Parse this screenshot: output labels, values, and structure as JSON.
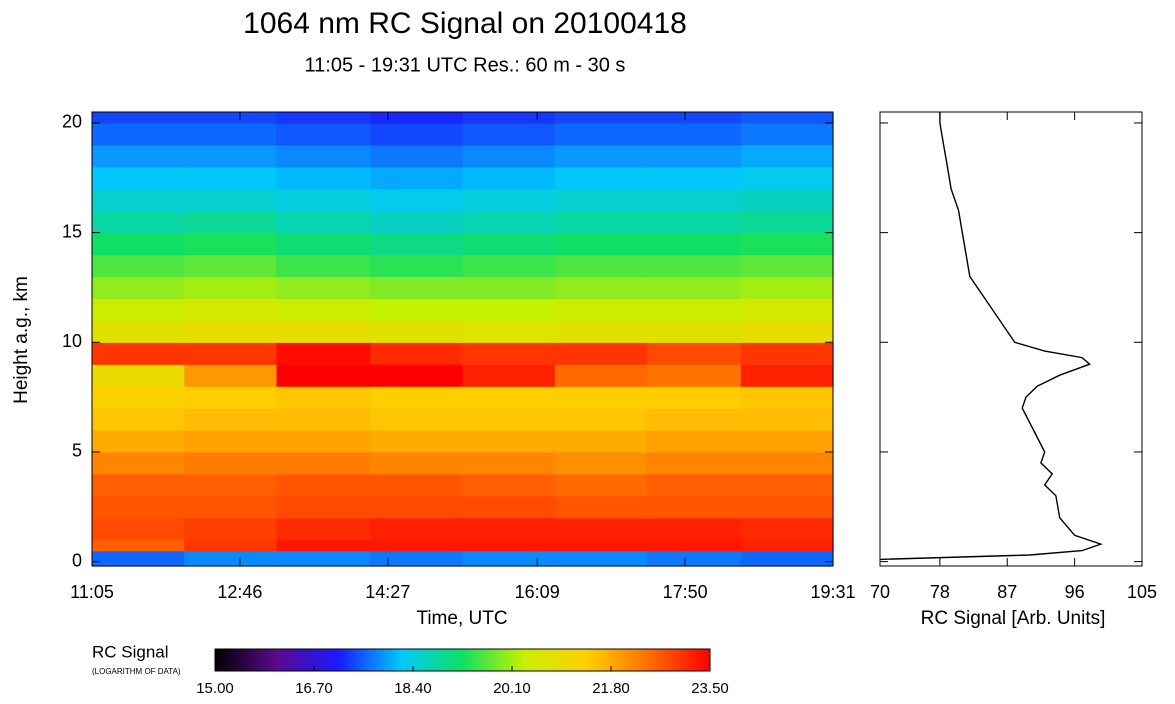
{
  "chart_data": [
    {
      "type": "heatmap",
      "title": "1064 nm RC Signal on  20100418",
      "subtitle": "11:05 - 19:31 UTC Res.:  60 m -  30 s",
      "xlabel": "Time, UTC",
      "ylabel": "Height a.g., km",
      "xlim": [
        665,
        1171
      ],
      "xticks": [
        {
          "value": 665,
          "label": "11:05"
        },
        {
          "value": 766,
          "label": "12:46"
        },
        {
          "value": 867,
          "label": "14:27"
        },
        {
          "value": 969,
          "label": "16:09"
        },
        {
          "value": 1070,
          "label": "17:50"
        },
        {
          "value": 1171,
          "label": "19:31"
        }
      ],
      "ylim": [
        -0.2,
        20.5
      ],
      "yticks": [
        0,
        5,
        10,
        15,
        20
      ],
      "xbins": [
        665,
        728,
        791,
        855,
        918,
        981,
        1044,
        1108,
        1171
      ],
      "ybins": [
        -0.2,
        0.5,
        1,
        2,
        3,
        4,
        5,
        6,
        7,
        8,
        9,
        10,
        11,
        12,
        13,
        14,
        15,
        16,
        17,
        18,
        19,
        20,
        20.5
      ],
      "z": [
        [
          17.6,
          17.8,
          17.8,
          17.7,
          17.8,
          17.8,
          17.7,
          17.6
        ],
        [
          22.6,
          23.0,
          23.3,
          23.3,
          23.3,
          23.3,
          23.3,
          23.2
        ],
        [
          22.8,
          22.9,
          23.1,
          23.2,
          23.2,
          23.2,
          23.2,
          23.1
        ],
        [
          22.7,
          22.7,
          22.8,
          22.8,
          22.8,
          22.7,
          22.7,
          22.7
        ],
        [
          22.6,
          22.6,
          22.7,
          22.7,
          22.6,
          22.5,
          22.6,
          22.6
        ],
        [
          22.2,
          22.3,
          22.3,
          22.2,
          22.2,
          22.1,
          22.2,
          22.2
        ],
        [
          21.8,
          21.9,
          21.9,
          21.8,
          21.8,
          21.8,
          21.9,
          21.9
        ],
        [
          21.5,
          21.6,
          21.6,
          21.5,
          21.5,
          21.5,
          21.6,
          21.6
        ],
        [
          21.3,
          21.4,
          21.5,
          21.4,
          21.4,
          21.4,
          21.4,
          21.5
        ],
        [
          21.0,
          22.0,
          23.5,
          23.5,
          23.2,
          22.5,
          22.4,
          23.2
        ],
        [
          23.0,
          23.0,
          23.4,
          23.1,
          23.0,
          23.0,
          22.8,
          23.0
        ],
        [
          20.8,
          20.9,
          20.9,
          20.8,
          20.7,
          20.8,
          20.8,
          20.9
        ],
        [
          20.4,
          20.5,
          20.4,
          20.3,
          20.3,
          20.4,
          20.4,
          20.5
        ],
        [
          20.0,
          20.1,
          20.0,
          19.9,
          19.9,
          20.0,
          20.0,
          20.1
        ],
        [
          19.6,
          19.7,
          19.5,
          19.4,
          19.5,
          19.6,
          19.6,
          19.7
        ],
        [
          19.2,
          19.3,
          19.1,
          19.0,
          19.1,
          19.2,
          19.2,
          19.3
        ],
        [
          18.8,
          18.9,
          18.7,
          18.6,
          18.7,
          18.8,
          18.8,
          18.9
        ],
        [
          18.5,
          18.5,
          18.4,
          18.3,
          18.4,
          18.5,
          18.5,
          18.6
        ],
        [
          18.2,
          18.2,
          18.1,
          18.0,
          18.1,
          18.2,
          18.2,
          18.3
        ],
        [
          17.9,
          17.9,
          17.8,
          17.7,
          17.8,
          17.9,
          17.9,
          18.0
        ],
        [
          17.6,
          17.6,
          17.5,
          17.4,
          17.5,
          17.6,
          17.6,
          17.7
        ],
        [
          17.4,
          17.4,
          17.3,
          17.2,
          17.3,
          17.4,
          17.4,
          17.5
        ]
      ],
      "colormap": [
        "#000000",
        "#5a0a8c",
        "#1a1aff",
        "#00c8ff",
        "#10e060",
        "#c8f000",
        "#ffd000",
        "#ff7000",
        "#ff0000"
      ],
      "colorbar": {
        "label": "RC Signal",
        "sublabel": "(LOGARITHM OF DATA)",
        "lim": [
          15,
          23.5
        ],
        "ticks": [
          {
            "value": 15,
            "label": "15.00"
          },
          {
            "value": 16.7,
            "label": "16.70"
          },
          {
            "value": 18.4,
            "label": "18.40"
          },
          {
            "value": 20.1,
            "label": "20.10"
          },
          {
            "value": 21.8,
            "label": "21.80"
          },
          {
            "value": 23.5,
            "label": "23.50"
          }
        ]
      }
    },
    {
      "type": "line",
      "xlabel": "RC Signal [Arb. Units]",
      "xlim": [
        70,
        105
      ],
      "xticks": [
        70,
        78,
        87,
        96,
        105
      ],
      "ylim": [
        -0.2,
        20.5
      ],
      "yticks": [
        0,
        5,
        10,
        15,
        20
      ],
      "color": "#000000",
      "heights": [
        0.1,
        0.3,
        0.5,
        0.8,
        1.2,
        2,
        3,
        3.5,
        4,
        4.5,
        5,
        6,
        7,
        7.5,
        8,
        8.5,
        9,
        9.3,
        9.6,
        10,
        11,
        12,
        13,
        14,
        15,
        16,
        17,
        18,
        19,
        20,
        20.5
      ],
      "values": [
        70,
        90,
        97,
        99.5,
        96,
        94,
        93.5,
        92,
        93,
        91.5,
        92,
        90.5,
        89,
        89.5,
        91,
        94,
        98,
        97,
        92,
        88,
        86,
        84,
        82,
        81.5,
        81,
        80.5,
        79.5,
        79,
        78.5,
        78,
        78
      ]
    }
  ]
}
